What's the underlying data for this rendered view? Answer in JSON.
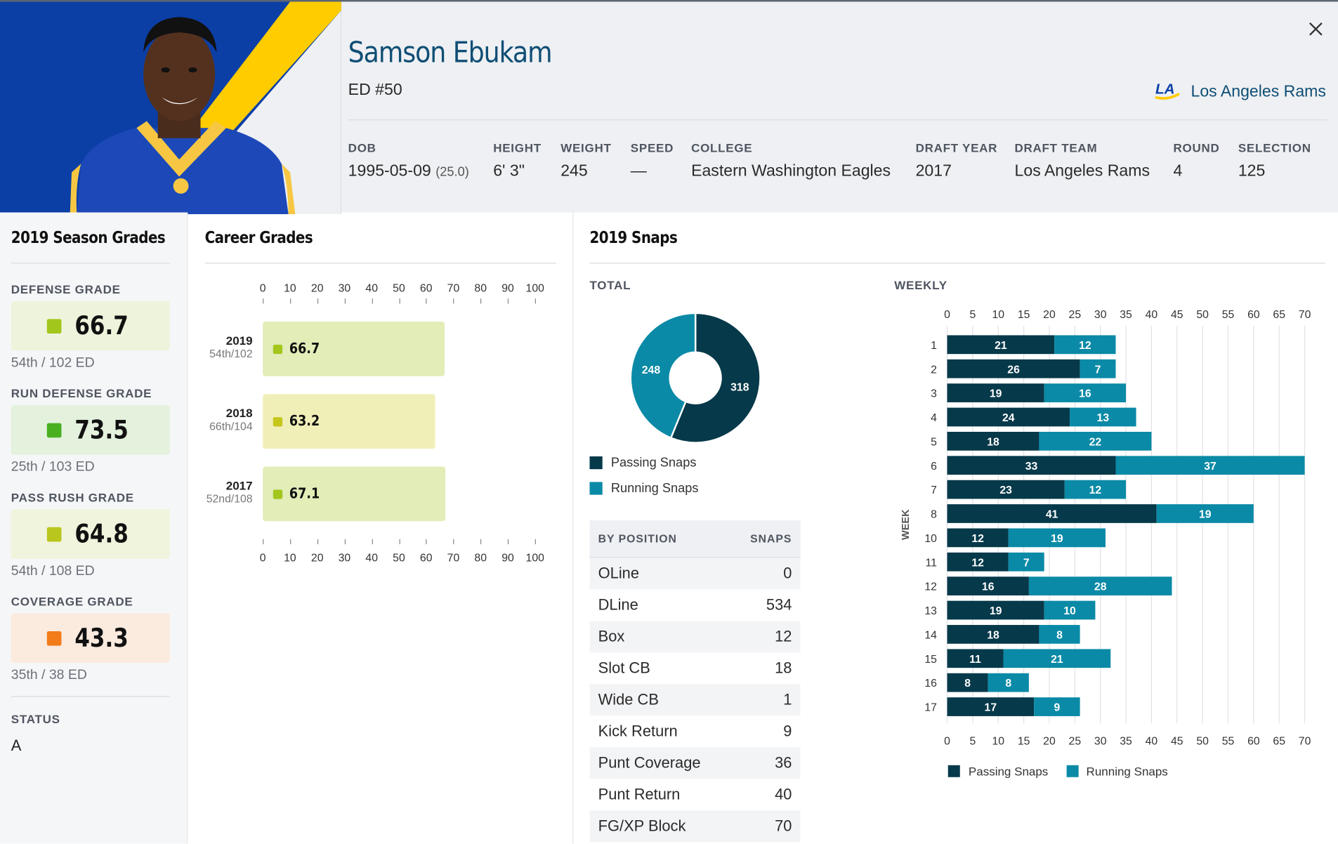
{
  "player": {
    "name": "Samson Ebukam",
    "position_number": "ED #50",
    "team_name": "Los Angeles Rams",
    "team_logo_text": "LA"
  },
  "meta": [
    {
      "label": "DOB",
      "value": "1995-05-09",
      "extra": "(25.0)"
    },
    {
      "label": "HEIGHT",
      "value": "6' 3\"",
      "extra": ""
    },
    {
      "label": "WEIGHT",
      "value": "245",
      "extra": ""
    },
    {
      "label": "SPEED",
      "value": "—",
      "extra": ""
    },
    {
      "label": "COLLEGE",
      "value": "Eastern Washington Eagles",
      "extra": ""
    },
    {
      "label": "DRAFT YEAR",
      "value": "2017",
      "extra": ""
    },
    {
      "label": "DRAFT TEAM",
      "value": "Los Angeles Rams",
      "extra": ""
    },
    {
      "label": "ROUND",
      "value": "4",
      "extra": ""
    },
    {
      "label": "SELECTION",
      "value": "125",
      "extra": ""
    }
  ],
  "season_grades": {
    "title": "2019 Season Grades",
    "items": [
      {
        "label": "DEFENSE GRADE",
        "value": "66.7",
        "rank": "54th / 102 ED",
        "color": "#a3c61d",
        "bg": "#eef4dc"
      },
      {
        "label": "RUN DEFENSE GRADE",
        "value": "73.5",
        "rank": "25th / 103 ED",
        "color": "#49b020",
        "bg": "#e3f1dd"
      },
      {
        "label": "PASS RUSH GRADE",
        "value": "64.8",
        "rank": "54th / 108 ED",
        "color": "#b9c61d",
        "bg": "#f1f4dc"
      },
      {
        "label": "COVERAGE GRADE",
        "value": "43.3",
        "rank": "35th / 38 ED",
        "color": "#f27c1a",
        "bg": "#fbeade"
      }
    ],
    "status_label": "STATUS",
    "status_value": "A"
  },
  "career": {
    "title": "Career Grades",
    "ticks": [
      "0",
      "10",
      "20",
      "30",
      "40",
      "50",
      "60",
      "70",
      "80",
      "90",
      "100"
    ],
    "rows": [
      {
        "year": "2019",
        "rank": "54th/102",
        "value_text": "66.7",
        "value": 66.7,
        "dot": "#a3c61d",
        "bg": "#e2edb8"
      },
      {
        "year": "2018",
        "rank": "66th/104",
        "value_text": "63.2",
        "value": 63.2,
        "dot": "#c6c61d",
        "bg": "#f1efb8"
      },
      {
        "year": "2017",
        "rank": "52nd/108",
        "value_text": "67.1",
        "value": 67.1,
        "dot": "#a3c61d",
        "bg": "#e2edb8"
      }
    ]
  },
  "snaps": {
    "title": "2019 Snaps",
    "total_label": "TOTAL",
    "weekly_label": "WEEKLY",
    "week_axis_label": "WEEK",
    "passing_label": "Passing Snaps",
    "running_label": "Running Snaps",
    "passing_total": "318",
    "running_total": "248",
    "passing_color": "#06394a",
    "running_color": "#0a8aa6"
  },
  "positions": {
    "col1": "BY POSITION",
    "col2": "SNAPS",
    "rows": [
      {
        "name": "OLine",
        "snaps": "0"
      },
      {
        "name": "DLine",
        "snaps": "534"
      },
      {
        "name": "Box",
        "snaps": "12"
      },
      {
        "name": "Slot CB",
        "snaps": "18"
      },
      {
        "name": "Wide CB",
        "snaps": "1"
      },
      {
        "name": "Kick Return",
        "snaps": "9"
      },
      {
        "name": "Punt Coverage",
        "snaps": "36"
      },
      {
        "name": "Punt Return",
        "snaps": "40"
      },
      {
        "name": "FG/XP Block",
        "snaps": "70"
      }
    ]
  },
  "chart_data": [
    {
      "type": "bar",
      "title": "Career Grades",
      "categories": [
        "2019",
        "2018",
        "2017"
      ],
      "values": [
        66.7,
        63.2,
        67.1
      ],
      "xlim": [
        0,
        100
      ],
      "ticks": [
        0,
        10,
        20,
        30,
        40,
        50,
        60,
        70,
        80,
        90,
        100
      ]
    },
    {
      "type": "pie",
      "title": "TOTAL",
      "labels": [
        "Passing Snaps",
        "Running Snaps"
      ],
      "values": [
        318,
        248
      ]
    },
    {
      "type": "bar",
      "title": "WEEKLY",
      "ylabel": "WEEK",
      "categories": [
        "1",
        "2",
        "3",
        "4",
        "5",
        "6",
        "7",
        "8",
        "10",
        "11",
        "12",
        "13",
        "14",
        "15",
        "16",
        "17"
      ],
      "series": [
        {
          "name": "Passing Snaps",
          "values": [
            21,
            26,
            19,
            24,
            18,
            33,
            23,
            41,
            12,
            12,
            16,
            19,
            18,
            11,
            8,
            17
          ]
        },
        {
          "name": "Running Snaps",
          "values": [
            12,
            7,
            16,
            13,
            22,
            37,
            12,
            19,
            19,
            7,
            28,
            10,
            8,
            21,
            8,
            9
          ]
        }
      ],
      "xlim": [
        0,
        70
      ],
      "ticks": [
        0,
        5,
        10,
        15,
        20,
        25,
        30,
        35,
        40,
        45,
        50,
        55,
        60,
        65,
        70
      ],
      "legend": "bottom"
    }
  ]
}
